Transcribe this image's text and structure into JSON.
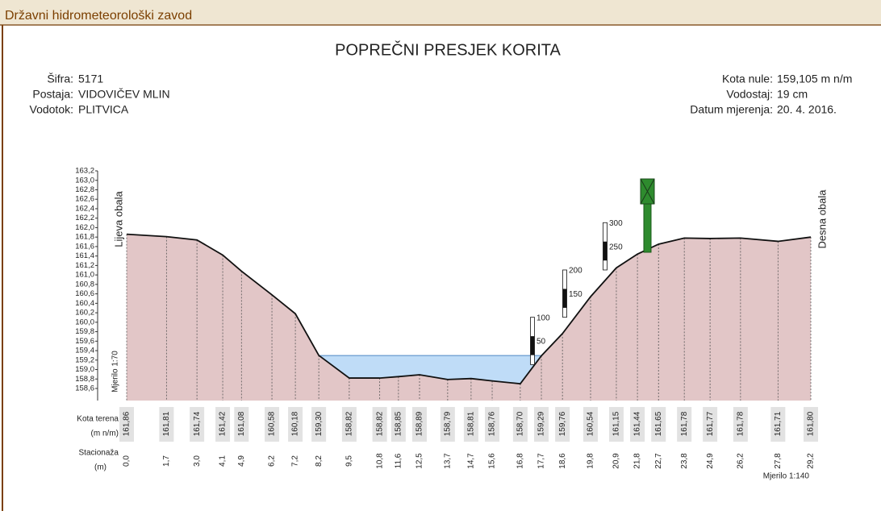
{
  "header": {
    "title": "Državni hidrometeorološki zavod"
  },
  "chart_data": {
    "type": "cross-section",
    "title": "POPREČNI PRESJEK KORITA",
    "info_left": [
      {
        "label": "Šifra:",
        "value": "5171"
      },
      {
        "label": "Postaja:",
        "value": "VIDOVIČEV MLIN"
      },
      {
        "label": "Vodotok:",
        "value": "PLITVICA"
      }
    ],
    "info_right": [
      {
        "label": "Kota nule:",
        "value": "159,105 m n/m"
      },
      {
        "label": "Vodostaj:",
        "value": "19 cm"
      },
      {
        "label": "Datum mjerenja:",
        "value": "20. 4. 2016."
      }
    ],
    "zero_level": 159.105,
    "stage_cm": 19,
    "left_bank": "Lijeva obala",
    "right_bank": "Desna obala",
    "scale_vertical": "Mjerilo 1:70",
    "scale_horizontal": "Mjerilo 1:140",
    "row_kota": [
      "Kota terena",
      "(m n/m)"
    ],
    "row_station": [
      "Stacionaža",
      "(m)"
    ],
    "x": [
      0.0,
      1.7,
      3.0,
      4.1,
      4.9,
      6.2,
      7.2,
      8.2,
      9.5,
      10.8,
      11.6,
      12.5,
      13.7,
      14.7,
      15.6,
      16.8,
      17.7,
      18.6,
      19.8,
      20.9,
      21.8,
      22.7,
      23.8,
      24.9,
      26.2,
      27.8,
      29.2
    ],
    "xticks": [
      {
        "value": 0.0,
        "label": "0,0"
      },
      {
        "value": 1.7,
        "label": "1,7"
      },
      {
        "value": 3.0,
        "label": "3,0"
      },
      {
        "value": 4.1,
        "label": "4,1"
      },
      {
        "value": 4.9,
        "label": "4,9"
      },
      {
        "value": 6.2,
        "label": "6,2"
      },
      {
        "value": 7.2,
        "label": "7,2"
      },
      {
        "value": 8.2,
        "label": "8,2"
      },
      {
        "value": 9.5,
        "label": "9,5"
      },
      {
        "value": 10.8,
        "label": "10,8"
      },
      {
        "value": 11.6,
        "label": "11,6"
      },
      {
        "value": 12.5,
        "label": "12,5"
      },
      {
        "value": 13.7,
        "label": "13,7"
      },
      {
        "value": 14.7,
        "label": "14,7"
      },
      {
        "value": 15.6,
        "label": "15,6"
      },
      {
        "value": 16.8,
        "label": "16,8"
      },
      {
        "value": 17.7,
        "label": "17,7"
      },
      {
        "value": 18.6,
        "label": "18,6"
      },
      {
        "value": 19.8,
        "label": "19,8"
      },
      {
        "value": 20.9,
        "label": "20,9"
      },
      {
        "value": 21.8,
        "label": "21,8"
      },
      {
        "value": 22.7,
        "label": "22,7"
      },
      {
        "value": 23.8,
        "label": "23,8"
      },
      {
        "value": 24.9,
        "label": "24,9"
      },
      {
        "value": 26.2,
        "label": "26,2"
      },
      {
        "value": 27.8,
        "label": "27,8"
      },
      {
        "value": 29.2,
        "label": "29,2"
      }
    ],
    "xlim": [
      0.0,
      29.2
    ],
    "values": [
      161.86,
      161.81,
      161.74,
      161.42,
      161.08,
      160.58,
      160.18,
      159.3,
      158.82,
      158.82,
      158.85,
      158.89,
      158.79,
      158.81,
      158.76,
      158.7,
      159.29,
      159.76,
      160.54,
      161.15,
      161.44,
      161.65,
      161.78,
      161.77,
      161.78,
      161.71,
      161.8
    ],
    "value_labels": [
      "161,86",
      "161,81",
      "161,74",
      "161,42",
      "161,08",
      "160,58",
      "160,18",
      "159,30",
      "158,82",
      "158,82",
      "158,85",
      "158,89",
      "158,79",
      "158,81",
      "158,76",
      "158,70",
      "159,29",
      "159,76",
      "160,54",
      "161,15",
      "161,44",
      "161,65",
      "161,78",
      "161,77",
      "161,78",
      "161,71",
      "161,80"
    ],
    "ylim": [
      158.6,
      163.2
    ],
    "yticks": [
      {
        "value": 158.6,
        "label": "158,6"
      },
      {
        "value": 158.8,
        "label": "158,8"
      },
      {
        "value": 159.0,
        "label": "159,0"
      },
      {
        "value": 159.2,
        "label": "159,2"
      },
      {
        "value": 159.4,
        "label": "159,4"
      },
      {
        "value": 159.6,
        "label": "159,6"
      },
      {
        "value": 159.8,
        "label": "159,8"
      },
      {
        "value": 160.0,
        "label": "160,0"
      },
      {
        "value": 160.2,
        "label": "160,2"
      },
      {
        "value": 160.4,
        "label": "160,4"
      },
      {
        "value": 160.6,
        "label": "160,6"
      },
      {
        "value": 160.8,
        "label": "160,8"
      },
      {
        "value": 161.0,
        "label": "161,0"
      },
      {
        "value": 161.2,
        "label": "161,2"
      },
      {
        "value": 161.4,
        "label": "161,4"
      },
      {
        "value": 161.6,
        "label": "161,6"
      },
      {
        "value": 161.8,
        "label": "161,8"
      },
      {
        "value": 162.0,
        "label": "162,0"
      },
      {
        "value": 162.2,
        "label": "162,2"
      },
      {
        "value": 162.4,
        "label": "162,4"
      },
      {
        "value": 162.6,
        "label": "162,6"
      },
      {
        "value": 162.8,
        "label": "162,8"
      },
      {
        "value": 163.0,
        "label": "163,0"
      },
      {
        "value": 163.2,
        "label": "163,2"
      }
    ],
    "gauge": [
      [
        50,
        100
      ],
      [
        150,
        200
      ],
      [
        250,
        300
      ]
    ],
    "ground_color": "#e2c6c7",
    "water_color": "#bfdcf7"
  }
}
